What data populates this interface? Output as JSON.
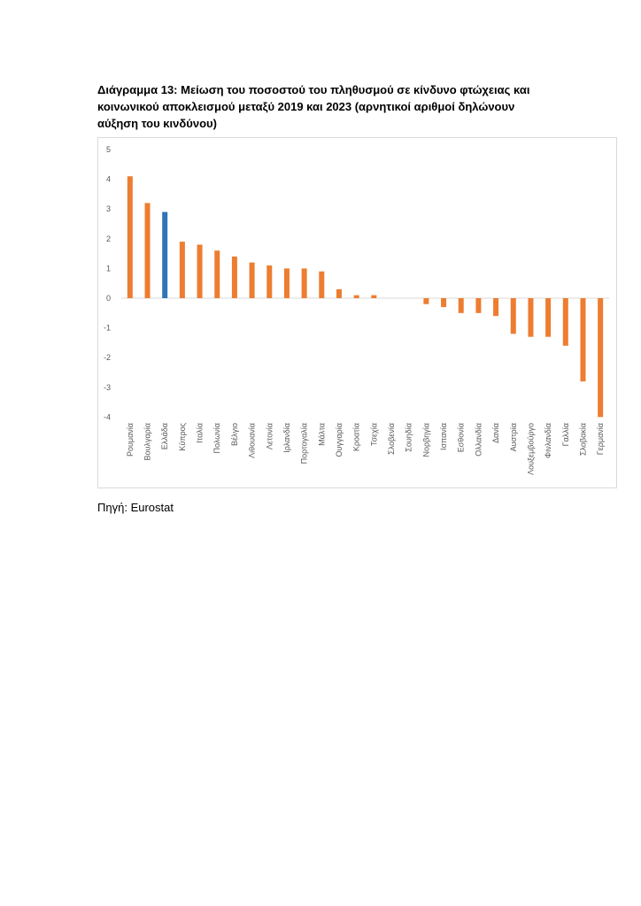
{
  "title": "Διάγραμμα 13: Μείωση του ποσοστού του πληθυσμού σε κίνδυνο φτώχειας και κοινωνικού αποκλεισμού μεταξύ 2019 και 2023 (αρνητικοί αριθμοί δηλώνουν αύξηση του κινδύνου)",
  "source": "Πηγή: Eurostat",
  "chart_data": {
    "type": "bar",
    "title": "",
    "xlabel": "",
    "ylabel": "",
    "ylim": [
      -4,
      5
    ],
    "yticks": [
      5,
      4,
      3,
      2,
      1,
      0,
      -1,
      -2,
      -3,
      -4
    ],
    "grid": false,
    "colors": {
      "default": "#ED7D31",
      "highlight": "#2E75B6"
    },
    "highlight": "Ελλάδα",
    "categories": [
      "Ρουμανία",
      "Βουλγαρία",
      "Ελλάδα",
      "Κύπρος",
      "Ιταλία",
      "Πολωνία",
      "Βέλγιο",
      "Λιθουανία",
      "Λετονία",
      "Ιρλανδία",
      "Πορτογαλία",
      "Μάλτα",
      "Ουγγαρία",
      "Κροατία",
      "Τσεχία",
      "Σλοβενία",
      "Σουηδία",
      "Νορβηγία",
      "Ισπανία",
      "Εσθονία",
      "Ολλανδία",
      "Δανία",
      "Αυστρία",
      "Λουξεμβούργο",
      "Φινλανδία",
      "Γαλλία",
      "Σλοβακία",
      "Γερμανία"
    ],
    "values": [
      4.1,
      3.2,
      2.9,
      1.9,
      1.8,
      1.6,
      1.4,
      1.2,
      1.1,
      1.0,
      1.0,
      0.9,
      0.3,
      0.1,
      0.1,
      0,
      0,
      -0.2,
      -0.3,
      -0.5,
      -0.5,
      -0.6,
      -1.2,
      -1.3,
      -1.3,
      -1.6,
      -2.8,
      -4.0
    ]
  }
}
